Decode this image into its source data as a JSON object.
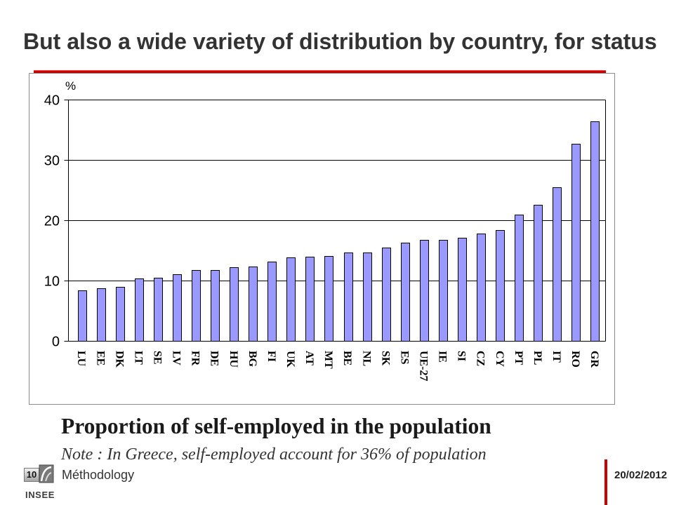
{
  "slide": {
    "title": "But also a wide variety of distribution by country, for status",
    "slide_number": "10",
    "logo_text": "INSEE",
    "section": "Méthodology",
    "date": "20/02/2012"
  },
  "colors": {
    "accent_red": "#cc0000",
    "bar_fill": "#9999ff",
    "bar_outline": "#000000",
    "gridline": "#000000"
  },
  "chart_data": {
    "type": "bar",
    "title": "Proportion of self-employed in the population",
    "note": "Note : In Greece, self-employed account for 36% of population",
    "ylabel": "%",
    "ylim": [
      0,
      40
    ],
    "yticks": [
      0,
      10,
      20,
      30,
      40
    ],
    "grid": true,
    "legend": "none",
    "categories": [
      "LU",
      "EE",
      "DK",
      "LT",
      "SE",
      "LV",
      "FR",
      "DE",
      "HU",
      "BG",
      "FI",
      "UK",
      "AT",
      "MT",
      "BE",
      "NL",
      "SK",
      "ES",
      "UE-27",
      "IE",
      "SI",
      "CZ",
      "CY",
      "PT",
      "PL",
      "IT",
      "RO",
      "GR"
    ],
    "values": [
      8.4,
      8.7,
      8.9,
      10.3,
      10.5,
      11.1,
      11.7,
      11.7,
      12.2,
      12.3,
      13.1,
      13.8,
      13.9,
      14.1,
      14.6,
      14.7,
      15.5,
      16.3,
      16.7,
      16.8,
      17.1,
      17.8,
      18.4,
      20.9,
      22.6,
      25.5,
      32.7,
      36.4
    ]
  }
}
